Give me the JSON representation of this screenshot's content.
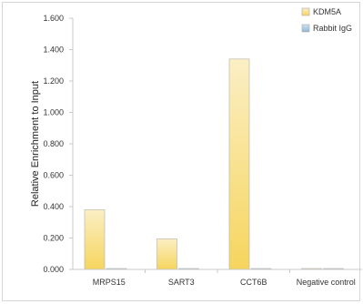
{
  "chart_data": {
    "type": "bar",
    "title": "",
    "xlabel": "",
    "ylabel": "Relative Enrichment to Input",
    "ylim": [
      0,
      1.6
    ],
    "yticks": [
      0,
      0.2,
      0.4,
      0.6,
      0.8,
      1.0,
      1.2,
      1.4,
      1.6
    ],
    "ytick_labels": [
      "0.000",
      "0.200",
      "0.400",
      "0.600",
      "0.800",
      "1.000",
      "1.200",
      "1.400",
      "1.600"
    ],
    "categories": [
      "MRPS15",
      "SART3",
      "CCT6B",
      "Negative control"
    ],
    "series": [
      {
        "name": "KDM5A",
        "values": [
          0.38,
          0.195,
          1.34,
          0.003
        ],
        "color": "#f5d45a"
      },
      {
        "name": "Rabbit IgG",
        "values": [
          0.003,
          0.003,
          0.003,
          0.003
        ],
        "color": "#8fb8d8"
      }
    ],
    "legend_position": "top-right",
    "grid": false
  }
}
